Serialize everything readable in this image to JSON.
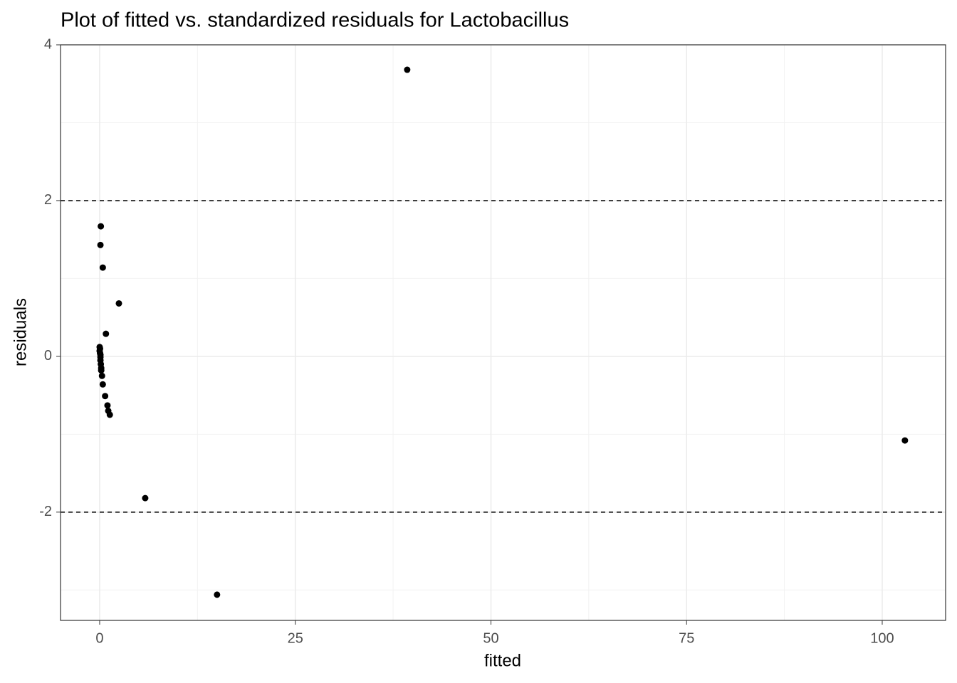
{
  "chart_data": {
    "type": "scatter",
    "title": "Plot of fitted vs. standardized residuals for Lactobacillus",
    "x_label": "fitted",
    "y_label": "residuals",
    "x": [
      39.3,
      0.15,
      0.1,
      0.4,
      2.46,
      0.8,
      0.0,
      0.05,
      0.0,
      0.05,
      0.1,
      0.1,
      0.1,
      0.15,
      0.2,
      0.2,
      0.3,
      0.4,
      0.7,
      1.0,
      1.1,
      1.3,
      5.82,
      15.0,
      102.9
    ],
    "y": [
      3.68,
      1.67,
      1.43,
      1.14,
      0.68,
      0.29,
      0.12,
      0.1,
      0.07,
      0.04,
      0.02,
      -0.01,
      -0.05,
      -0.1,
      -0.15,
      -0.18,
      -0.25,
      -0.36,
      -0.51,
      -0.63,
      -0.7,
      -0.75,
      -1.82,
      -3.06,
      -1.08
    ],
    "color": "#000000",
    "xlim": [
      -5.0,
      108.1
    ],
    "ylim": [
      -3.39,
      4.0
    ],
    "xticks": [
      0,
      25,
      50,
      75,
      100
    ],
    "yticks": [
      -2,
      0,
      2,
      4
    ],
    "hlines": [
      2,
      -2
    ],
    "grid": true
  }
}
